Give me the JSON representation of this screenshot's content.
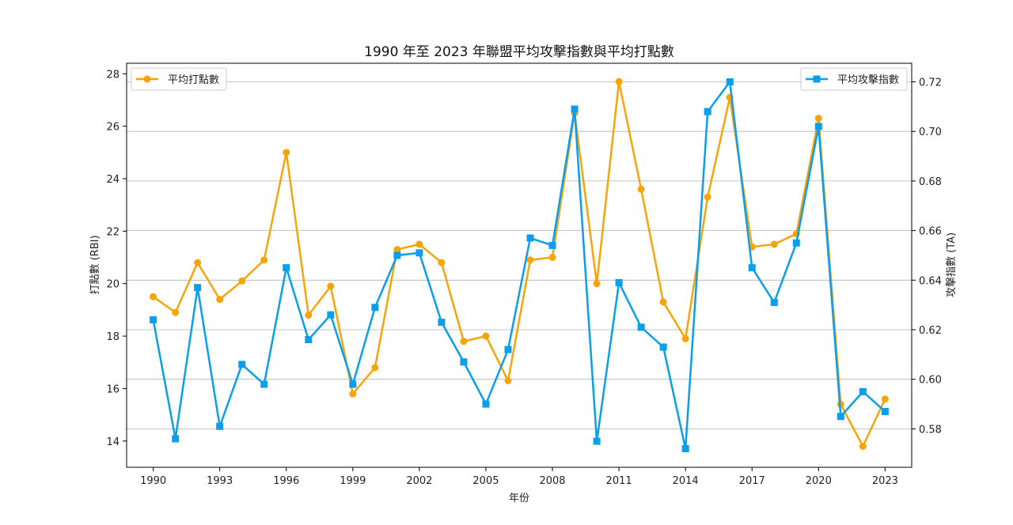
{
  "chart_data": {
    "type": "line",
    "title": "1990 年至 2023 年聯盟平均攻擊指數與平均打點數",
    "xlabel": "年份",
    "ylabel_left": "打點數 (RBI)",
    "ylabel_right": "攻擊指數 (TA)",
    "x": [
      1990,
      1991,
      1992,
      1993,
      1994,
      1995,
      1996,
      1997,
      1998,
      1999,
      2000,
      2001,
      2002,
      2003,
      2004,
      2005,
      2006,
      2007,
      2008,
      2009,
      2010,
      2011,
      2012,
      2013,
      2014,
      2015,
      2016,
      2017,
      2018,
      2019,
      2020,
      2021,
      2022,
      2023
    ],
    "x_ticks": [
      1990,
      1993,
      1996,
      1999,
      2002,
      2005,
      2008,
      2011,
      2014,
      2017,
      2020,
      2023
    ],
    "xlim": [
      1988.8,
      2024.2
    ],
    "left_axis": {
      "ylim": [
        13.0,
        28.4
      ],
      "ticks": [
        14,
        16,
        18,
        20,
        22,
        24,
        26,
        28
      ]
    },
    "right_axis": {
      "ylim": [
        0.5645,
        0.7275
      ],
      "ticks": [
        0.58,
        0.6,
        0.62,
        0.64,
        0.66,
        0.68,
        0.7,
        0.72
      ]
    },
    "grid": "horizontal-right-axis",
    "series": [
      {
        "name": "平均打點數",
        "axis": "left",
        "marker": "circle",
        "color": "#F5A50A",
        "legend_position": "top-left",
        "values": [
          19.5,
          18.9,
          20.8,
          19.4,
          20.1,
          20.9,
          25.0,
          18.8,
          19.9,
          15.8,
          16.8,
          21.3,
          21.5,
          20.8,
          17.8,
          18.0,
          16.3,
          20.9,
          21.0,
          26.5,
          20.0,
          27.7,
          23.6,
          19.3,
          17.9,
          23.3,
          27.1,
          21.4,
          21.5,
          21.9,
          26.3,
          15.4,
          13.8,
          15.6
        ]
      },
      {
        "name": "平均攻擊指數",
        "axis": "right",
        "marker": "square",
        "color": "#0A9EEB",
        "legend_position": "top-right",
        "values": [
          0.624,
          0.576,
          0.637,
          0.581,
          0.606,
          0.598,
          0.645,
          0.616,
          0.626,
          0.598,
          0.629,
          0.65,
          0.651,
          0.623,
          0.607,
          0.59,
          0.612,
          0.657,
          0.654,
          0.709,
          0.575,
          0.639,
          0.621,
          0.613,
          0.572,
          0.708,
          0.72,
          0.645,
          0.631,
          0.655,
          0.702,
          0.585,
          0.595,
          0.587
        ]
      }
    ]
  }
}
